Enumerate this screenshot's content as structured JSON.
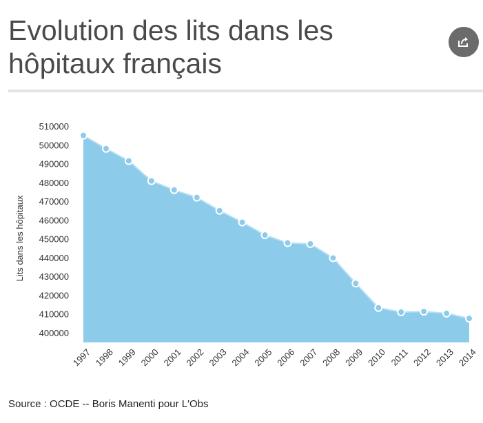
{
  "header": {
    "title": "Evolution des lits dans les hôpitaux français",
    "share_icon": "share-icon"
  },
  "footer": {
    "source": "Source : OCDE  --  Boris Manenti pour L'Obs"
  },
  "colors": {
    "area_fill": "#8dcbeb",
    "line": "#b9e0f4",
    "marker_fill": "#8dcbeb",
    "marker_stroke": "#ffffff",
    "share_bg": "#6b6b6b"
  },
  "chart_data": {
    "type": "area",
    "title": "Evolution des lits dans les hôpitaux français",
    "xlabel": "",
    "ylabel": "Lits dans les hôpitaux",
    "x": [
      "1997",
      "1998",
      "1999",
      "2000",
      "2001",
      "2002",
      "2003",
      "2004",
      "2005",
      "2006",
      "2007",
      "2008",
      "2009",
      "2010",
      "2011",
      "2012",
      "2013",
      "2014"
    ],
    "series": [
      {
        "values": [
          505000,
          498000,
          491500,
          480800,
          476000,
          472000,
          465000,
          458800,
          452000,
          447800,
          447300,
          439800,
          426300,
          413300,
          411000,
          411300,
          410300,
          407600
        ]
      }
    ],
    "yticks": [
      "400000",
      "410000",
      "420000",
      "430000",
      "440000",
      "450000",
      "460000",
      "470000",
      "480000",
      "490000",
      "500000",
      "510000"
    ],
    "ylim": [
      400000,
      510000
    ],
    "grid": false,
    "legend": "none"
  }
}
